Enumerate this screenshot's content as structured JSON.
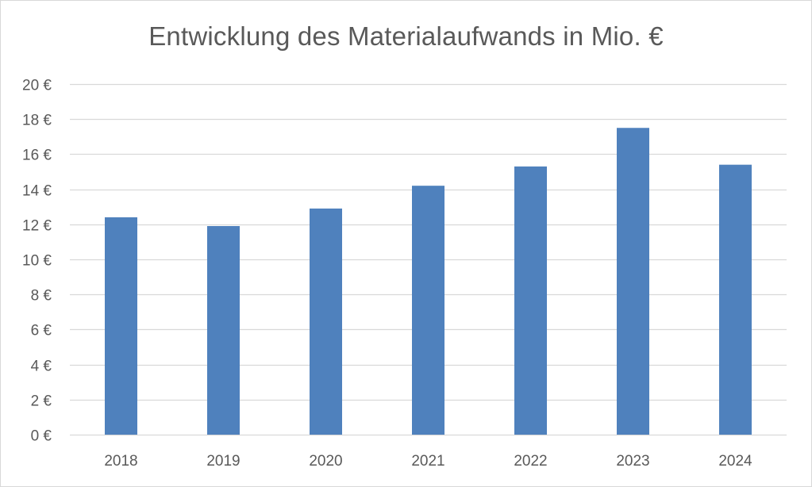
{
  "chart_data": {
    "type": "bar",
    "title": "Entwicklung des Materialaufwands in Mio. €",
    "xlabel": "",
    "ylabel": "",
    "categories": [
      "2018",
      "2019",
      "2020",
      "2021",
      "2022",
      "2023",
      "2024"
    ],
    "values": [
      12.4,
      11.9,
      12.9,
      14.2,
      15.3,
      17.5,
      15.4
    ],
    "ylim": [
      0,
      20
    ],
    "yticks": [
      0,
      2,
      4,
      6,
      8,
      10,
      12,
      14,
      16,
      18,
      20
    ],
    "ytick_labels": [
      "0 €",
      "2 €",
      "4 €",
      "6 €",
      "8 €",
      "10 €",
      "12 €",
      "14 €",
      "16 €",
      "18 €",
      "20 €"
    ],
    "grid": true,
    "legend": "none",
    "bar_color": "#4f81bd",
    "grid_color": "#d9d9d9",
    "text_color": "#595959"
  }
}
